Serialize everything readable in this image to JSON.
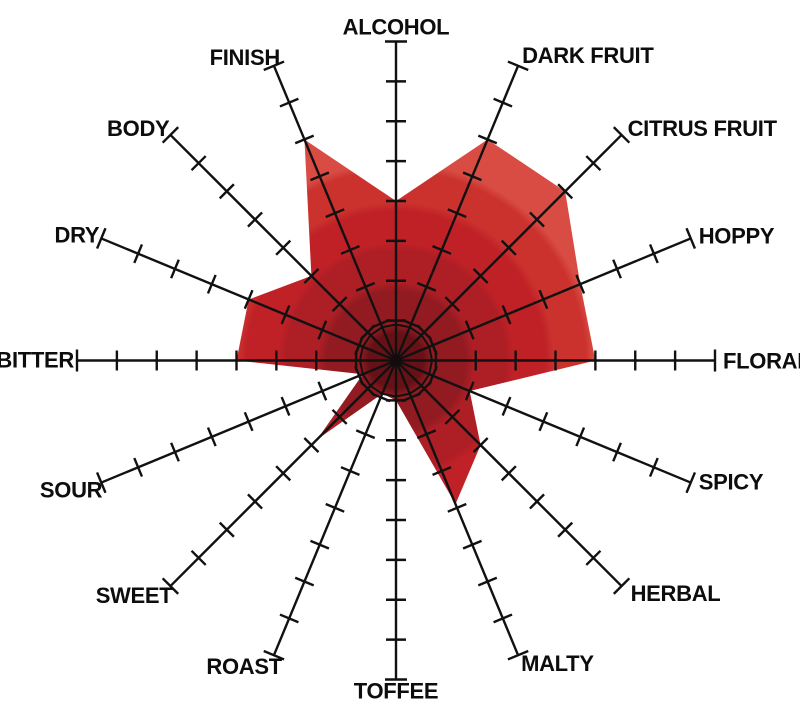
{
  "chart_data": {
    "type": "radar",
    "title": "",
    "axes": [
      {
        "label": "ALCOHOL",
        "value": 4.0
      },
      {
        "label": "DARK FRUIT",
        "value": 6.0
      },
      {
        "label": "CITRUS FRUIT",
        "value": 6.0
      },
      {
        "label": "HOPPY",
        "value": 5.0
      },
      {
        "label": "FLORAL",
        "value": 5.0
      },
      {
        "label": "SPICY",
        "value": 2.0
      },
      {
        "label": "HERBAL",
        "value": 3.0
      },
      {
        "label": "MALTY",
        "value": 3.9
      },
      {
        "label": "TOFFEE",
        "value": 1.0
      },
      {
        "label": "ROAST",
        "value": 0.9
      },
      {
        "label": "SWEET",
        "value": 2.8
      },
      {
        "label": "SOUR",
        "value": 0.9
      },
      {
        "label": "BITTER",
        "value": 4.0
      },
      {
        "label": "DRY",
        "value": 4.0
      },
      {
        "label": "BODY",
        "value": 3.0
      },
      {
        "label": "FINISH",
        "value": 6.0
      }
    ],
    "axis_max": 8,
    "ticks_per_axis": 8,
    "grid": "single inner ring (16-gon) around hub",
    "legend": "none",
    "colors": {
      "axis": "#111111",
      "label": "#0d0d0d",
      "background": "#ffffff",
      "center_dot": "#140b0b",
      "fill_gradient_bands": [
        {
          "r": 0,
          "color": "#671116"
        },
        {
          "r": 36,
          "color": "#911b21"
        },
        {
          "r": 78,
          "color": "#ad1e25"
        },
        {
          "r": 118,
          "color": "#bf2127"
        },
        {
          "r": 158,
          "color": "#cb312d"
        },
        {
          "r": 198,
          "color": "#d84c44"
        },
        {
          "r": 243,
          "color": "#e2655b"
        }
      ]
    }
  }
}
